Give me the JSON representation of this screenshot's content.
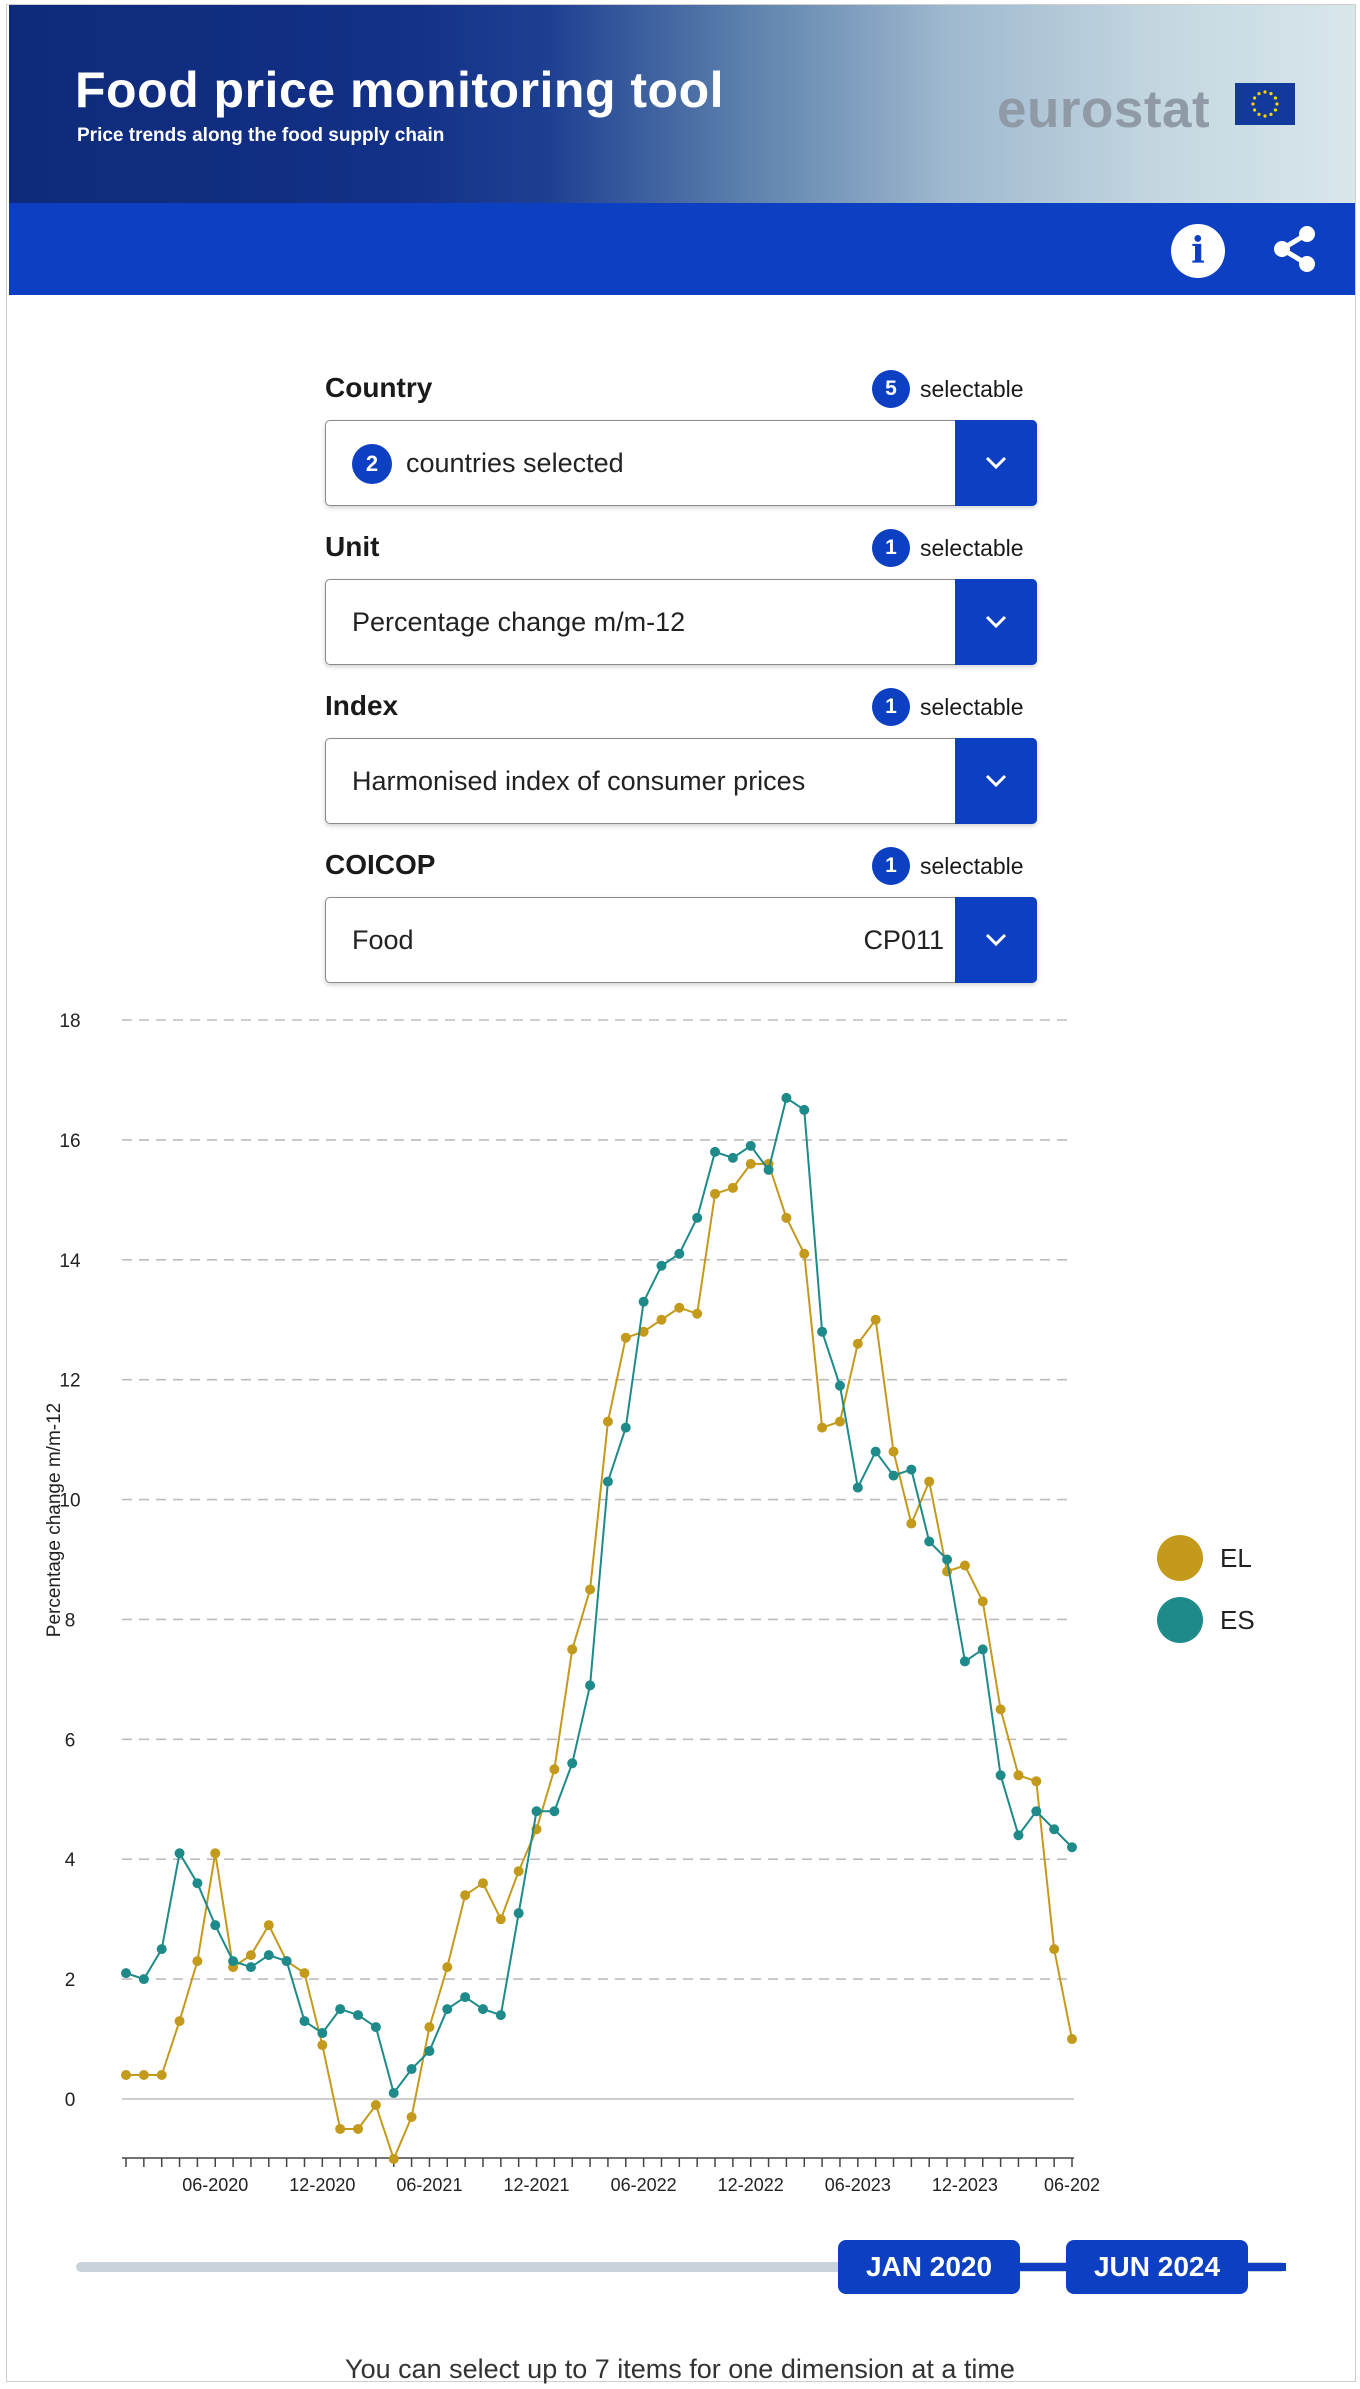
{
  "header": {
    "title": "Food price monitoring tool",
    "subtitle": "Price trends along the food supply chain",
    "logo_text": "eurostat",
    "info_icon": "info-icon",
    "share_icon": "share-icon",
    "colors": {
      "bar": "#0d3fc2",
      "dark": "#0e2a7a"
    }
  },
  "filters": [
    {
      "label": "Country",
      "selectable_count": "5",
      "selectable_text": "selectable",
      "value_count": "2",
      "value": "countries selected",
      "code": ""
    },
    {
      "label": "Unit",
      "selectable_count": "1",
      "selectable_text": "selectable",
      "value": "Percentage change m/m-12",
      "code": ""
    },
    {
      "label": "Index",
      "selectable_count": "1",
      "selectable_text": "selectable",
      "value": "Harmonised index of consumer prices",
      "code": ""
    },
    {
      "label": "COICOP",
      "selectable_count": "1",
      "selectable_text": "selectable",
      "value": "Food",
      "code": "CP011"
    }
  ],
  "chart_data": {
    "type": "line",
    "ylabel": "Percentage change m/m-12",
    "xlabel": "",
    "ylim": [
      -1,
      18
    ],
    "yticks": [
      0,
      2,
      4,
      6,
      8,
      10,
      12,
      14,
      16,
      18
    ],
    "grid": true,
    "legend_position": "right",
    "x": [
      "01-2020",
      "02-2020",
      "03-2020",
      "04-2020",
      "05-2020",
      "06-2020",
      "07-2020",
      "08-2020",
      "09-2020",
      "10-2020",
      "11-2020",
      "12-2020",
      "01-2021",
      "02-2021",
      "03-2021",
      "04-2021",
      "05-2021",
      "06-2021",
      "07-2021",
      "08-2021",
      "09-2021",
      "10-2021",
      "11-2021",
      "12-2021",
      "01-2022",
      "02-2022",
      "03-2022",
      "04-2022",
      "05-2022",
      "06-2022",
      "07-2022",
      "08-2022",
      "09-2022",
      "10-2022",
      "11-2022",
      "12-2022",
      "01-2023",
      "02-2023",
      "03-2023",
      "04-2023",
      "05-2023",
      "06-2023",
      "07-2023",
      "08-2023",
      "09-2023",
      "10-2023",
      "11-2023",
      "12-2023",
      "01-2024",
      "02-2024",
      "03-2024",
      "04-2024",
      "05-2024",
      "06-2024"
    ],
    "xtick_labels": [
      "06-2020",
      "12-2020",
      "06-2021",
      "12-2021",
      "06-2022",
      "12-2022",
      "06-2023",
      "12-2023",
      "06-202"
    ],
    "series": [
      {
        "name": "EL",
        "color": "#c49a1c",
        "values": [
          0.4,
          0.4,
          0.4,
          1.3,
          2.3,
          4.1,
          2.2,
          2.4,
          2.9,
          2.3,
          2.1,
          0.9,
          -0.5,
          -0.5,
          -0.1,
          -1.0,
          -0.3,
          1.2,
          2.2,
          3.4,
          3.6,
          3.0,
          3.8,
          4.5,
          5.5,
          7.5,
          8.5,
          11.3,
          12.7,
          12.8,
          13.0,
          13.2,
          13.1,
          15.1,
          15.2,
          15.6,
          15.6,
          14.7,
          14.1,
          11.2,
          11.3,
          12.6,
          13.0,
          10.8,
          9.6,
          10.3,
          8.8,
          8.9,
          8.3,
          6.5,
          5.4,
          5.3,
          2.5,
          1.0
        ]
      },
      {
        "name": "ES",
        "color": "#1f8a8a",
        "values": [
          2.1,
          2.0,
          2.5,
          4.1,
          3.6,
          2.9,
          2.3,
          2.2,
          2.4,
          2.3,
          1.3,
          1.1,
          1.5,
          1.4,
          1.2,
          0.1,
          0.5,
          0.8,
          1.5,
          1.7,
          1.5,
          1.4,
          3.1,
          4.8,
          4.8,
          5.6,
          6.9,
          10.3,
          11.2,
          13.3,
          13.9,
          14.1,
          14.7,
          15.8,
          15.7,
          15.9,
          15.5,
          16.7,
          16.5,
          12.8,
          11.9,
          10.2,
          10.8,
          10.4,
          10.5,
          9.3,
          9.0,
          7.3,
          7.5,
          5.4,
          4.4,
          4.8,
          4.5,
          4.2
        ]
      }
    ]
  },
  "timeline": {
    "start": "JAN 2020",
    "end": "JUN 2024"
  },
  "footer_text": "You can select up to 7 items for one dimension at a time"
}
